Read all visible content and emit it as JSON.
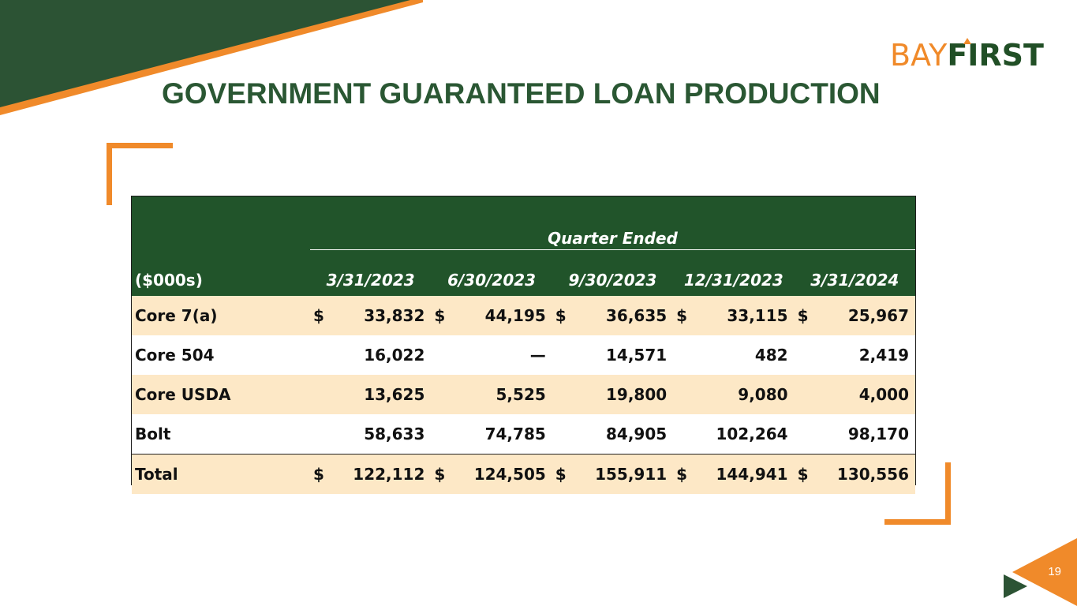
{
  "header": {
    "title": "GOVERNMENT GUARANTEED LOAN PRODUCTION",
    "logo_part1": "BAY",
    "logo_part2": "FIRST"
  },
  "table": {
    "group_header": "Quarter Ended",
    "unit_label": "($000s)",
    "columns": [
      "3/31/2023",
      "6/30/2023",
      "9/30/2023",
      "12/31/2023",
      "3/31/2024"
    ],
    "rows": [
      {
        "label": "Core 7(a)",
        "currency": "$",
        "values": [
          "33,832",
          "44,195",
          "36,635",
          "33,115",
          "25,967"
        ]
      },
      {
        "label": "Core 504",
        "currency": "",
        "values": [
          "16,022",
          "—",
          "14,571",
          "482",
          "2,419"
        ]
      },
      {
        "label": "Core USDA",
        "currency": "",
        "values": [
          "13,625",
          "5,525",
          "19,800",
          "9,080",
          "4,000"
        ]
      },
      {
        "label": "Bolt",
        "currency": "",
        "values": [
          "58,633",
          "74,785",
          "84,905",
          "102,264",
          "98,170"
        ]
      },
      {
        "label": "Total",
        "currency": "$",
        "values": [
          "122,112",
          "124,505",
          "155,911",
          "144,941",
          "130,556"
        ]
      }
    ]
  },
  "footer": {
    "page_number": "19"
  },
  "colors": {
    "brand_green": "#21542a",
    "brand_orange": "#f08a2a",
    "row_shade": "#fde8c6"
  }
}
